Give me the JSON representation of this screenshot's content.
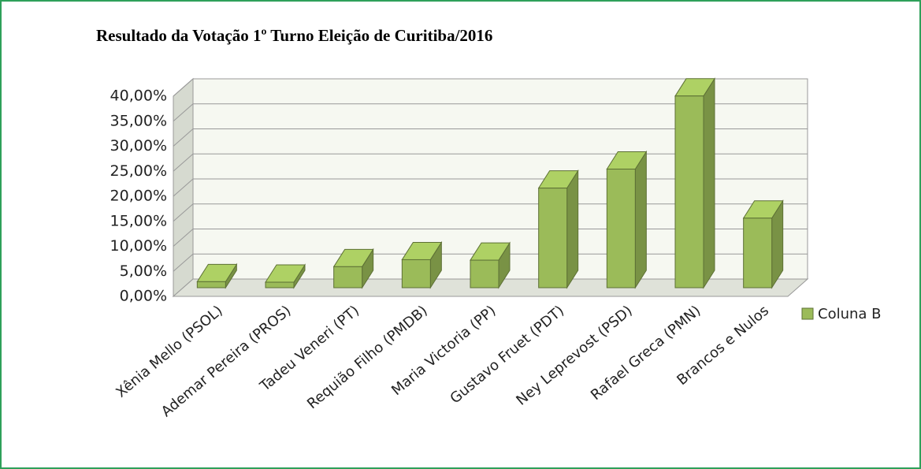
{
  "chart_data": {
    "type": "bar3d",
    "title": "Resultado da Votação 1º Turno Eleição de Curitiba/2016",
    "categories": [
      "Xênia Mello (PSOL)",
      "Ademar Pereira (PROS)",
      "Tadeu Veneri (PT)",
      "Requião Filho (PMDB)",
      "Maria Victoria (PP)",
      "Gustavo Fruet (PDT)",
      "Ney Leprevost (PSD)",
      "Rafael Greca (PMN)",
      "Brancos e Nulos"
    ],
    "series": [
      {
        "name": "Coluna B",
        "color": "#9bbb59",
        "values": [
          1.2,
          1.1,
          4.2,
          5.6,
          5.5,
          19.9,
          23.7,
          38.3,
          13.9
        ]
      }
    ],
    "ylim": [
      0,
      40
    ],
    "yticks": [
      {
        "value": 0,
        "label": "0,00%"
      },
      {
        "value": 5,
        "label": "5,00%"
      },
      {
        "value": 10,
        "label": "10,00%"
      },
      {
        "value": 15,
        "label": "15,00%"
      },
      {
        "value": 20,
        "label": "20,00%"
      },
      {
        "value": 25,
        "label": "25,00%"
      },
      {
        "value": 30,
        "label": "30,00%"
      },
      {
        "value": 35,
        "label": "35,00%"
      },
      {
        "value": 40,
        "label": "40,00%"
      }
    ],
    "grid": true,
    "legend": "right"
  }
}
